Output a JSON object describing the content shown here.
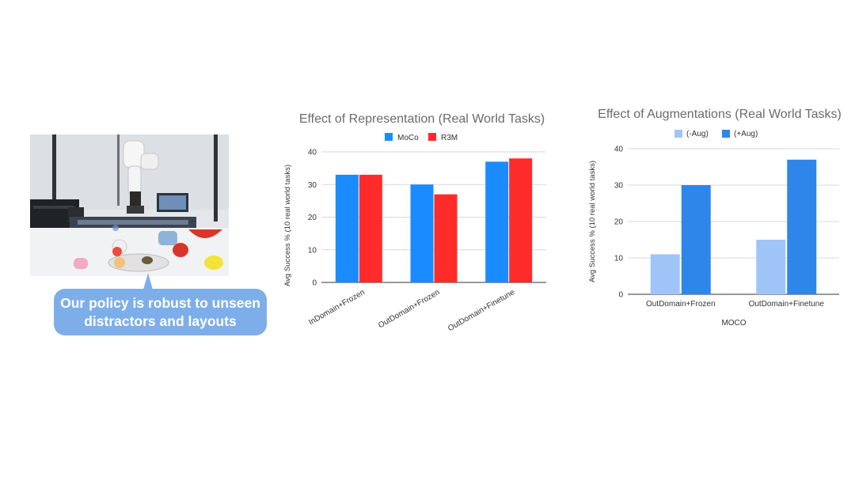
{
  "callout": {
    "text": "Our policy is robust to unseen distractors and layouts"
  },
  "photo": {
    "subject": "robot arm on table with distractor objects"
  },
  "colors": {
    "moco": "#1a8cff",
    "r3m": "#ff2b2b",
    "aug_minus": "#9fc5f8",
    "aug_plus": "#2f86ea",
    "callout_bg": "#7eaee9"
  },
  "chart_data": [
    {
      "type": "bar",
      "title": "Effect of Representation (Real World Tasks)",
      "xlabel": "",
      "ylabel": "Avg Success % (10 real world tasks)",
      "categories": [
        "InDomain+Frozen",
        "OutDomain+Frozen",
        "OutDomain+Finetune"
      ],
      "series": [
        {
          "name": "MoCo",
          "values": [
            33,
            30,
            37
          ],
          "color": "#1a8cff"
        },
        {
          "name": "R3M",
          "values": [
            33,
            27,
            38
          ],
          "color": "#ff2b2b"
        }
      ],
      "ylim": [
        0,
        40
      ],
      "yticks": [
        0,
        10,
        20,
        30,
        40
      ],
      "legend": "top",
      "grid": true
    },
    {
      "type": "bar",
      "title": "Effect of Augmentations (Real World Tasks)",
      "xlabel": "MOCO",
      "ylabel": "Avg Success % (10 real world tasks)",
      "categories": [
        "OutDomain+Frozen",
        "OutDomain+Finetune"
      ],
      "series": [
        {
          "name": "(-Aug)",
          "values": [
            11,
            15
          ],
          "color": "#9fc5f8"
        },
        {
          "name": "(+Aug)",
          "values": [
            30,
            37
          ],
          "color": "#2f86ea"
        }
      ],
      "ylim": [
        0,
        40
      ],
      "yticks": [
        0,
        10,
        20,
        30,
        40
      ],
      "legend": "top",
      "grid": true
    }
  ]
}
